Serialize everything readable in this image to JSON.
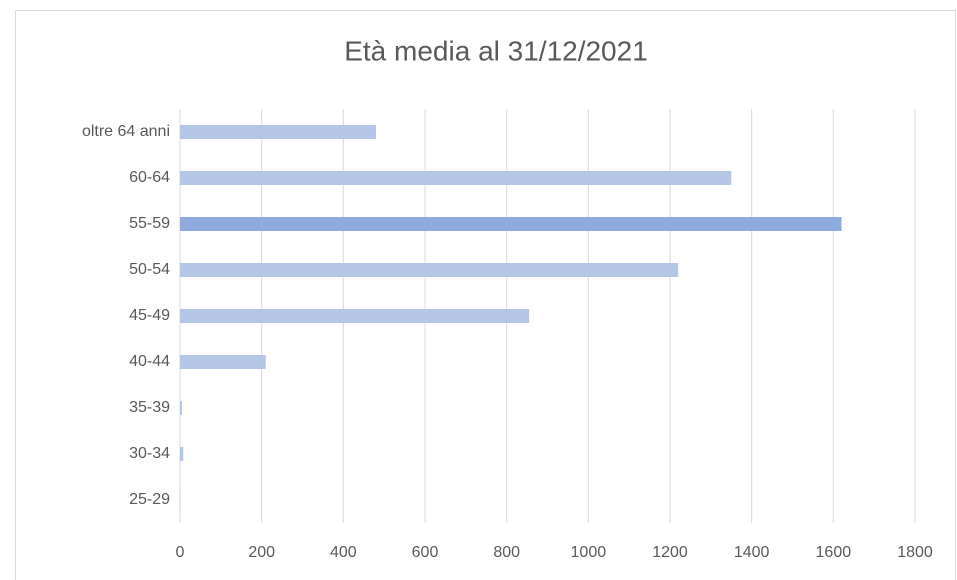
{
  "chart_data": {
    "type": "barh",
    "title": "Età media al 31/12/2021",
    "categories": [
      "25-29",
      "30-34",
      "35-39",
      "40-44",
      "45-49",
      "50-54",
      "55-59",
      "60-64",
      "oltre 64 anni"
    ],
    "values": [
      1,
      8,
      5,
      210,
      855,
      1220,
      1620,
      1350,
      480
    ],
    "colors": [
      "#b4c7e7",
      "#b4c7e7",
      "#b4c7e7",
      "#b4c7e7",
      "#b4c7e7",
      "#b4c7e7",
      "#8faadc",
      "#b4c7e7",
      "#b4c7e7"
    ],
    "xlim": [
      0,
      1800
    ],
    "xticks": [
      0,
      200,
      400,
      600,
      800,
      1000,
      1200,
      1400,
      1600,
      1800
    ],
    "grid": true
  }
}
